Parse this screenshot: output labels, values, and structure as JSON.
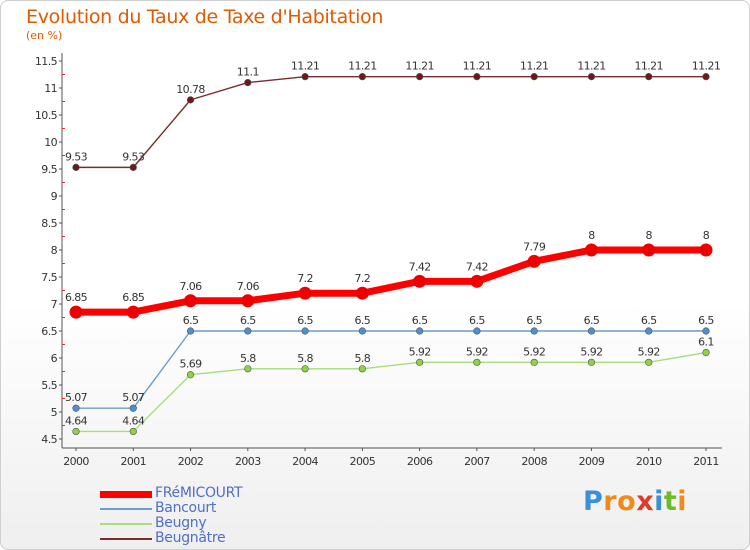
{
  "title": "Evolution du Taux de Taxe d'Habitation",
  "subtitle": "(en %)",
  "logo": {
    "text": "Proxiti",
    "letters": [
      {
        "ch": "P",
        "color": "#3a8fd9"
      },
      {
        "ch": "r",
        "color": "#f08a1c"
      },
      {
        "ch": "o",
        "color": "#f08a1c"
      },
      {
        "ch": "x",
        "color": "#e23a2a"
      },
      {
        "ch": "i",
        "color": "#3a8fd9"
      },
      {
        "ch": "t",
        "color": "#6cbb2a"
      },
      {
        "ch": "i",
        "color": "#f08a1c"
      }
    ]
  },
  "chart_data": {
    "type": "line",
    "title": "Evolution du Taux de Taxe d'Habitation",
    "ylabel": "(en %)",
    "xlabel": "",
    "x": [
      "2000",
      "2001",
      "2002",
      "2003",
      "2004",
      "2005",
      "2006",
      "2007",
      "2008",
      "2009",
      "2010",
      "2011"
    ],
    "ylim": [
      4.5,
      11.5
    ],
    "yticks": [
      4.5,
      5,
      5.5,
      6,
      6.5,
      7,
      7.5,
      8,
      8.5,
      9,
      9.5,
      10,
      10.5,
      11,
      11.5
    ],
    "ytick_labels": [
      "4.5",
      "5",
      "5.5",
      "6",
      "6.5",
      "7",
      "7.5",
      "8",
      "8.5",
      "9",
      "9.5",
      "10",
      "10.5",
      "11",
      "11.5"
    ],
    "grid": false,
    "legend_position": "bottom-left",
    "series": [
      {
        "name": "Beugnâtre",
        "color": "#7a2b2b",
        "marker": "#6a1a1a",
        "weight": "thin",
        "values": [
          9.53,
          9.53,
          10.78,
          11.1,
          11.21,
          11.21,
          11.21,
          11.21,
          11.21,
          11.21,
          11.21,
          11.21
        ],
        "labels": [
          "9.53",
          "9.53",
          "10.78",
          "11.1",
          "11.21",
          "11.21",
          "11.21",
          "11.21",
          "11.21",
          "11.21",
          "11.21",
          "11.21"
        ]
      },
      {
        "name": "Beugny",
        "color": "#a7dd7e",
        "marker": "#8fd147",
        "weight": "thin",
        "values": [
          4.64,
          4.64,
          5.69,
          5.8,
          5.8,
          5.8,
          5.92,
          5.92,
          5.92,
          5.92,
          5.92,
          6.1
        ],
        "labels": [
          "4.64",
          "4.64",
          "5.69",
          "5.8",
          "5.8",
          "5.8",
          "5.92",
          "5.92",
          "5.92",
          "5.92",
          "5.92",
          "6.1"
        ]
      },
      {
        "name": "Bancourt",
        "color": "#6e9cc7",
        "marker": "#4d8fd0",
        "weight": "thin",
        "values": [
          5.07,
          5.07,
          6.5,
          6.5,
          6.5,
          6.5,
          6.5,
          6.5,
          6.5,
          6.5,
          6.5,
          6.5
        ],
        "labels": [
          "5.07",
          "5.07",
          "6.5",
          "6.5",
          "6.5",
          "6.5",
          "6.5",
          "6.5",
          "6.5",
          "6.5",
          "6.5",
          "6.5"
        ]
      },
      {
        "name": "FRéMICOURT",
        "color": "#ff0000",
        "marker": "#ee0000",
        "weight": "thick",
        "values": [
          6.85,
          6.85,
          7.06,
          7.06,
          7.2,
          7.2,
          7.42,
          7.42,
          7.79,
          8,
          8,
          8
        ],
        "labels": [
          "6.85",
          "6.85",
          "7.06",
          "7.06",
          "7.2",
          "7.2",
          "7.42",
          "7.42",
          "7.79",
          "8",
          "8",
          "8"
        ]
      }
    ],
    "legend_order": [
      "FRéMICOURT",
      "Bancourt",
      "Beugny",
      "Beugnâtre"
    ]
  }
}
